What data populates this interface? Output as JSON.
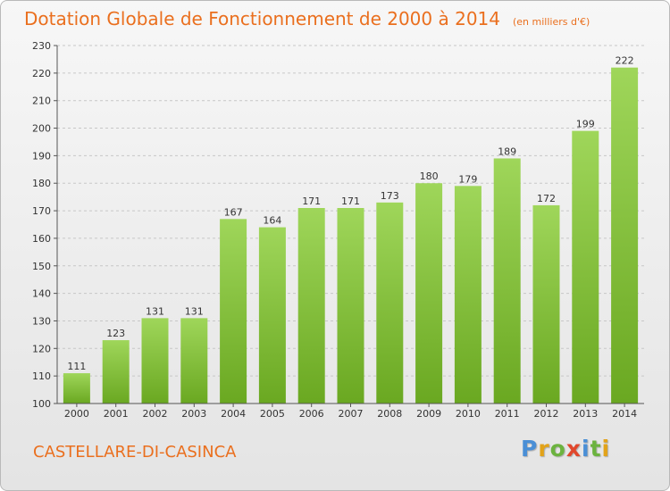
{
  "title": "Dotation Globale de Fonctionnement de 2000 à 2014",
  "unit": "(en milliers d'€)",
  "commune": "CASTELLARE-DI-CASINCA",
  "brand": {
    "letters": [
      "P",
      "r",
      "o",
      "x",
      "i",
      "t",
      "i"
    ],
    "colors": [
      "#4a8fd6",
      "#e2a31a",
      "#6cb33f",
      "#e1472c",
      "#4a8fd6",
      "#6cb33f",
      "#e2a31a"
    ]
  },
  "colors": {
    "bar_light": "#9fd65a",
    "bar_dark": "#6aa821",
    "grid": "#c7c7c7",
    "axis": "#555555"
  },
  "chart_data": {
    "type": "bar",
    "title": "Dotation Globale de Fonctionnement de 2000 à 2014",
    "ylabel": "(en milliers d'€)",
    "categories": [
      "2000",
      "2001",
      "2002",
      "2003",
      "2004",
      "2005",
      "2006",
      "2007",
      "2008",
      "2009",
      "2010",
      "2011",
      "2012",
      "2013",
      "2014"
    ],
    "values": [
      111,
      123,
      131,
      131,
      167,
      164,
      171,
      171,
      173,
      180,
      179,
      189,
      172,
      199,
      222
    ],
    "ylim": [
      100,
      230
    ],
    "yticks": [
      100,
      110,
      120,
      130,
      140,
      150,
      160,
      170,
      180,
      190,
      200,
      210,
      220,
      230
    ],
    "grid": true,
    "data_labels": true
  }
}
